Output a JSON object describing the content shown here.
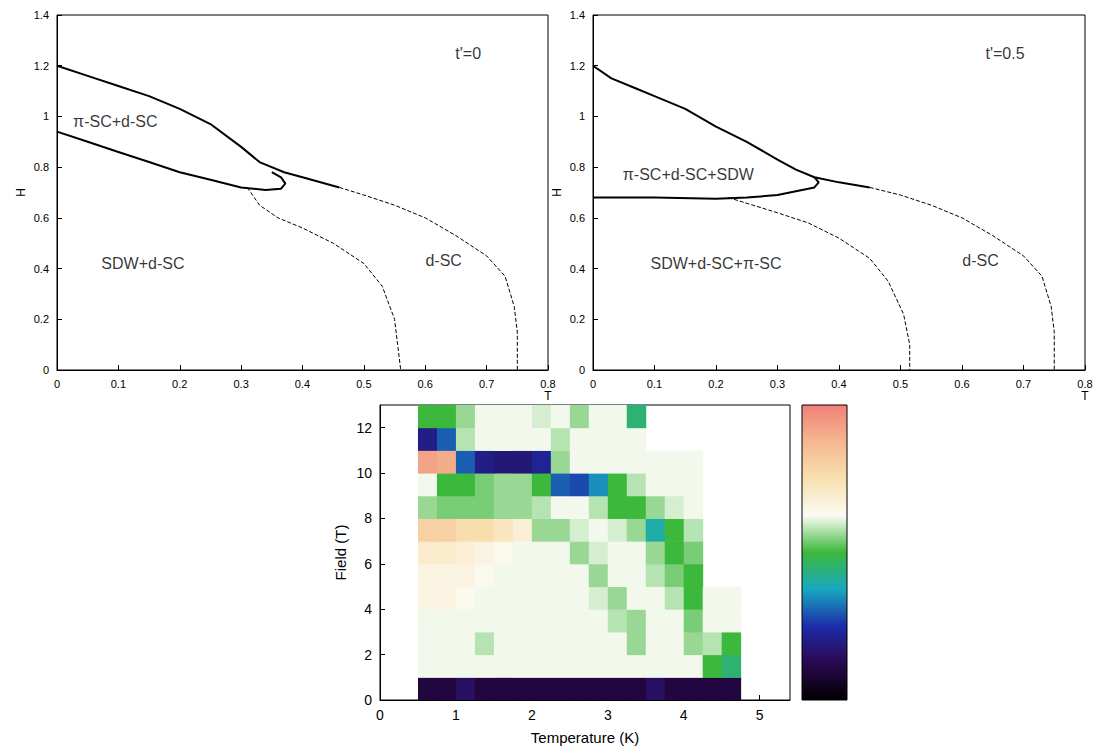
{
  "chart_data": [
    {
      "type": "line",
      "x_label": "T",
      "y_label": "H",
      "xlim": [
        0,
        0.8
      ],
      "xticks": [
        0,
        0.1,
        0.2,
        0.3,
        0.4,
        0.5,
        0.6,
        0.7,
        0.8
      ],
      "ylim": [
        0,
        1.4
      ],
      "yticks": [
        0,
        0.2,
        0.4,
        0.6,
        0.8,
        1,
        1.2,
        1.4
      ],
      "grid": false,
      "annotations": [
        {
          "text": "t'=0",
          "x": 0.67,
          "y": 1.25
        },
        {
          "text": "π-SC+d-SC",
          "x": 0.095,
          "y": 0.98
        },
        {
          "text": "SDW+d-SC",
          "x": 0.14,
          "y": 0.42
        },
        {
          "text": "d-SC",
          "x": 0.63,
          "y": 0.43
        }
      ],
      "series": [
        {
          "color": "#000000",
          "line_style": "solid",
          "values": [
            [
              0,
              1.2
            ],
            [
              0.05,
              1.16
            ],
            [
              0.1,
              1.12
            ],
            [
              0.15,
              1.08
            ],
            [
              0.2,
              1.03
            ],
            [
              0.25,
              0.97
            ],
            [
              0.3,
              0.88
            ],
            [
              0.33,
              0.82
            ],
            [
              0.37,
              0.78
            ],
            [
              0.4,
              0.76
            ],
            [
              0.46,
              0.72
            ]
          ]
        },
        {
          "color": "#000000",
          "line_style": "solid",
          "values": [
            [
              0,
              0.94
            ],
            [
              0.05,
              0.9
            ],
            [
              0.1,
              0.86
            ],
            [
              0.15,
              0.82
            ],
            [
              0.2,
              0.78
            ],
            [
              0.25,
              0.75
            ],
            [
              0.3,
              0.72
            ],
            [
              0.34,
              0.71
            ],
            [
              0.365,
              0.715
            ],
            [
              0.372,
              0.735
            ],
            [
              0.365,
              0.76
            ],
            [
              0.35,
              0.78
            ]
          ]
        },
        {
          "color": "#000000",
          "line_style": "dashed",
          "values": [
            [
              0.46,
              0.72
            ],
            [
              0.5,
              0.69
            ],
            [
              0.55,
              0.65
            ],
            [
              0.6,
              0.6
            ],
            [
              0.65,
              0.53
            ],
            [
              0.7,
              0.45
            ],
            [
              0.73,
              0.37
            ],
            [
              0.745,
              0.25
            ],
            [
              0.75,
              0.15
            ],
            [
              0.75,
              0
            ]
          ]
        },
        {
          "color": "#000000",
          "line_style": "dashed",
          "values": [
            [
              0.31,
              0.72
            ],
            [
              0.33,
              0.65
            ],
            [
              0.36,
              0.6
            ],
            [
              0.4,
              0.56
            ],
            [
              0.45,
              0.5
            ],
            [
              0.5,
              0.42
            ],
            [
              0.53,
              0.33
            ],
            [
              0.55,
              0.2
            ],
            [
              0.555,
              0.1
            ],
            [
              0.56,
              0
            ]
          ]
        }
      ]
    },
    {
      "type": "line",
      "x_label": "T",
      "y_label": "H",
      "xlim": [
        0,
        0.8
      ],
      "xticks": [
        0,
        0.1,
        0.2,
        0.3,
        0.4,
        0.5,
        0.6,
        0.7,
        0.8
      ],
      "ylim": [
        0,
        1.4
      ],
      "yticks": [
        0,
        0.2,
        0.4,
        0.6,
        0.8,
        1,
        1.2,
        1.4
      ],
      "grid": false,
      "annotations": [
        {
          "text": "t'=0.5",
          "x": 0.67,
          "y": 1.25
        },
        {
          "text": "π-SC+d-SC+SDW",
          "x": 0.155,
          "y": 0.77
        },
        {
          "text": "SDW+d-SC+π-SC",
          "x": 0.2,
          "y": 0.42
        },
        {
          "text": "d-SC",
          "x": 0.63,
          "y": 0.43
        }
      ],
      "series": [
        {
          "color": "#000000",
          "line_style": "solid",
          "values": [
            [
              0,
              1.2
            ],
            [
              0.03,
              1.15
            ],
            [
              0.07,
              1.11
            ],
            [
              0.1,
              1.08
            ],
            [
              0.15,
              1.03
            ],
            [
              0.2,
              0.96
            ],
            [
              0.25,
              0.9
            ],
            [
              0.3,
              0.83
            ],
            [
              0.33,
              0.79
            ],
            [
              0.36,
              0.76
            ],
            [
              0.4,
              0.74
            ],
            [
              0.45,
              0.72
            ]
          ]
        },
        {
          "color": "#000000",
          "line_style": "solid",
          "values": [
            [
              0,
              0.68
            ],
            [
              0.1,
              0.68
            ],
            [
              0.2,
              0.675
            ],
            [
              0.25,
              0.68
            ],
            [
              0.3,
              0.69
            ],
            [
              0.34,
              0.71
            ],
            [
              0.36,
              0.72
            ],
            [
              0.367,
              0.74
            ],
            [
              0.36,
              0.76
            ]
          ]
        },
        {
          "color": "#000000",
          "line_style": "dashed",
          "values": [
            [
              0.45,
              0.72
            ],
            [
              0.5,
              0.69
            ],
            [
              0.55,
              0.65
            ],
            [
              0.6,
              0.6
            ],
            [
              0.65,
              0.53
            ],
            [
              0.7,
              0.45
            ],
            [
              0.73,
              0.37
            ],
            [
              0.745,
              0.25
            ],
            [
              0.75,
              0.15
            ],
            [
              0.75,
              0
            ]
          ]
        },
        {
          "color": "#000000",
          "line_style": "dashed",
          "values": [
            [
              0.22,
              0.68
            ],
            [
              0.3,
              0.62
            ],
            [
              0.35,
              0.58
            ],
            [
              0.4,
              0.52
            ],
            [
              0.45,
              0.44
            ],
            [
              0.48,
              0.35
            ],
            [
              0.505,
              0.22
            ],
            [
              0.515,
              0.1
            ],
            [
              0.515,
              0
            ]
          ]
        }
      ]
    },
    {
      "type": "heatmap",
      "x_label": "Temperature (K)",
      "y_label": "Field (T)",
      "xlim": [
        0,
        5.4
      ],
      "xticks": [
        0,
        1,
        2,
        3,
        4,
        5
      ],
      "ylim": [
        0,
        13
      ],
      "yticks": [
        0,
        2,
        4,
        6,
        8,
        10,
        12
      ],
      "grid": false,
      "x_bins": [
        0.5,
        0.75,
        1,
        1.25,
        1.5,
        1.75,
        2,
        2.25,
        2.5,
        2.75,
        3,
        3.25,
        3.5,
        3.75,
        4,
        4.25,
        4.5,
        4.75
      ],
      "y_bins": [
        0,
        1,
        2,
        3,
        4,
        5,
        6,
        7,
        8,
        9,
        10,
        11,
        12,
        13
      ],
      "cells": [
        [
          0.1,
          0.1,
          0.15,
          0.1,
          0.1,
          0.1,
          0.1,
          0.1,
          0.1,
          0.1,
          0.1,
          0.1,
          0.15,
          0.1,
          0.1,
          0.1,
          0.1
        ],
        [
          0.62,
          0.62,
          0.62,
          0.62,
          0.62,
          0.62,
          0.62,
          0.62,
          0.62,
          0.62,
          0.62,
          0.62,
          0.62,
          0.62,
          0.62,
          0.5,
          0.45
        ],
        [
          0.62,
          0.62,
          0.62,
          0.58,
          0.62,
          0.62,
          0.62,
          0.62,
          0.62,
          0.62,
          0.62,
          0.56,
          0.62,
          0.62,
          0.56,
          0.58,
          0.5
        ],
        [
          0.62,
          0.62,
          0.62,
          0.62,
          0.62,
          0.62,
          0.62,
          0.62,
          0.62,
          0.62,
          0.58,
          0.56,
          0.62,
          0.62,
          0.54,
          0.62,
          0.62
        ],
        [
          0.66,
          0.66,
          0.64,
          0.62,
          0.62,
          0.62,
          0.62,
          0.62,
          0.62,
          0.6,
          0.56,
          0.62,
          0.62,
          0.58,
          0.5,
          0.62,
          0.62
        ],
        [
          0.66,
          0.66,
          0.66,
          0.64,
          0.62,
          0.62,
          0.62,
          0.62,
          0.62,
          0.56,
          0.62,
          0.62,
          0.58,
          0.54,
          0.5,
          null,
          null
        ],
        [
          0.7,
          0.7,
          0.68,
          0.66,
          0.64,
          0.62,
          0.62,
          0.62,
          0.56,
          0.6,
          0.62,
          0.62,
          0.56,
          0.5,
          0.54,
          null,
          null
        ],
        [
          0.8,
          0.8,
          0.76,
          0.76,
          0.72,
          0.68,
          0.56,
          0.56,
          0.6,
          0.62,
          0.6,
          0.56,
          0.4,
          0.5,
          0.58,
          null,
          null
        ],
        [
          0.56,
          0.54,
          0.54,
          0.54,
          0.56,
          0.56,
          0.58,
          0.62,
          0.62,
          0.58,
          0.5,
          0.5,
          0.56,
          0.6,
          0.62,
          null,
          null
        ],
        [
          0.62,
          0.5,
          0.5,
          0.54,
          0.56,
          0.56,
          0.5,
          0.3,
          0.28,
          0.35,
          0.5,
          0.58,
          0.62,
          0.62,
          0.62,
          null,
          null
        ],
        [
          0.92,
          0.9,
          0.3,
          0.2,
          0.18,
          0.18,
          0.22,
          0.56,
          0.62,
          0.62,
          0.62,
          0.62,
          0.62,
          0.62,
          0.62,
          null,
          null
        ],
        [
          0.2,
          0.3,
          0.58,
          0.62,
          0.62,
          0.62,
          0.62,
          0.58,
          0.62,
          0.62,
          0.62,
          0.62,
          null,
          null,
          null,
          null,
          null
        ],
        [
          0.5,
          0.5,
          0.56,
          0.62,
          0.62,
          0.62,
          0.6,
          0.62,
          0.56,
          0.62,
          0.62,
          0.45,
          null,
          null,
          null,
          null,
          null
        ]
      ],
      "colorbar": {
        "range": [
          0,
          1
        ],
        "colors": [
          "#000000",
          "#2a0850",
          "#1c2ca8",
          "#18a8c0",
          "#3cb83c",
          "#fbfbf4",
          "#f8e0b0",
          "#f5b890",
          "#f08078"
        ]
      }
    }
  ]
}
